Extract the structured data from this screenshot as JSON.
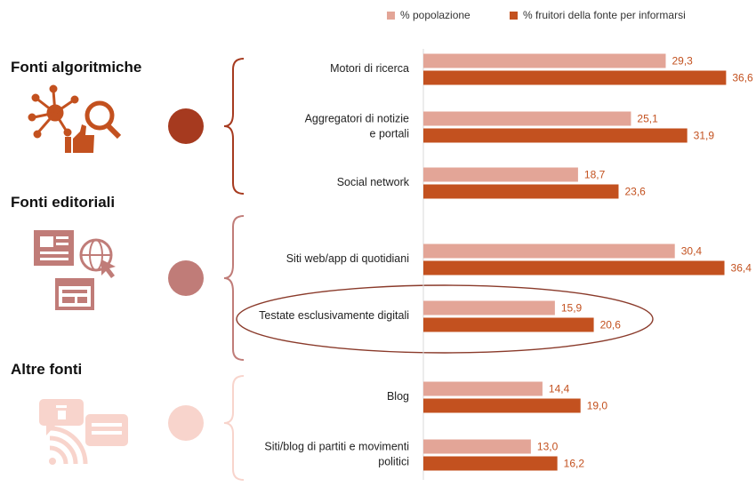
{
  "legend": {
    "popolazione": "% popolazione",
    "fruitori": "% fruitori della fonte per informarsi"
  },
  "groups": [
    {
      "title": "Fonti algoritmiche",
      "color": "#a63a1f"
    },
    {
      "title": "Fonti editoriali",
      "color": "#c07c78"
    },
    {
      "title": "Altre fonti",
      "color": "#f8d4cc"
    }
  ],
  "colors": {
    "popolazione": "#e3a597",
    "fruitori": "#c3511f",
    "label": "#c3511f",
    "highlight_ellipse": "#8a3a2a"
  },
  "icons": [
    "network-search-like-icon",
    "newspaper-globe-browser-icon",
    "chat-broadcast-icon"
  ],
  "chart_data": {
    "type": "bar",
    "orientation": "horizontal",
    "categories": [
      "Motori di ricerca",
      "Aggregatori di notizie e portali",
      "Social network",
      "Siti web/app di quotidiani",
      "Testate esclusivamente digitali",
      "Blog",
      "Siti/blog di partiti e movimenti politici"
    ],
    "category_groups": [
      "Fonti algoritmiche",
      "Fonti algoritmiche",
      "Fonti algoritmiche",
      "Fonti editoriali",
      "Fonti editoriali",
      "Altre fonti",
      "Altre fonti"
    ],
    "series": [
      {
        "name": "% popolazione",
        "values": [
          29.3,
          25.1,
          18.7,
          30.4,
          15.9,
          14.4,
          13.0
        ],
        "labels": [
          "29,3",
          "25,1",
          "18,7",
          "30,4",
          "15,9",
          "14,4",
          "13,0"
        ]
      },
      {
        "name": "% fruitori della fonte per informarsi",
        "values": [
          36.6,
          31.9,
          23.6,
          36.4,
          20.6,
          19.0,
          16.2
        ],
        "labels": [
          "36,6",
          "31,9",
          "23,6",
          "36,4",
          "20,6",
          "19,0",
          "16,2"
        ]
      }
    ],
    "highlighted_category": "Testate esclusivamente digitali"
  }
}
